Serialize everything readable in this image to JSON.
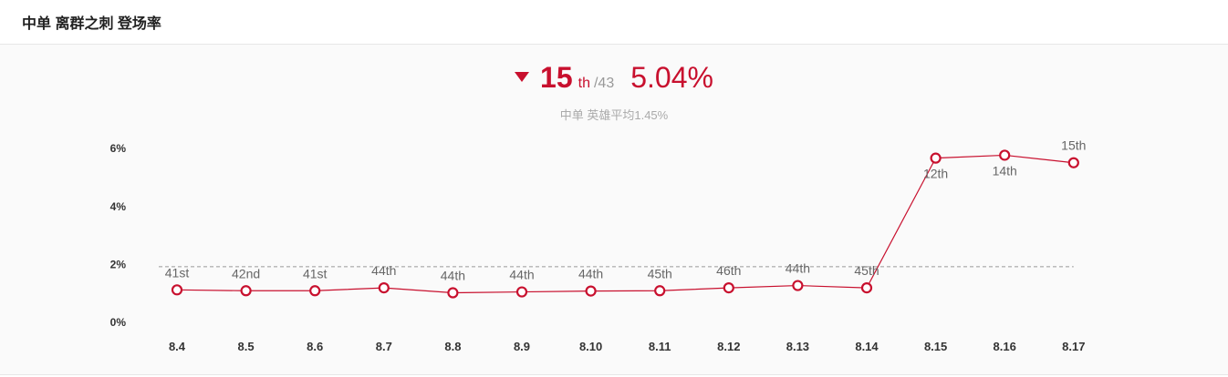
{
  "header": {
    "title": "中单 离群之刺 登场率"
  },
  "summary": {
    "rank": "15",
    "rank_suffix": "th",
    "rank_total": "/43",
    "rate": "5.04%",
    "avg_text": "中单 英雄平均1.45%",
    "trend": "down",
    "trend_icon": "triangle-down-icon"
  },
  "colors": {
    "accent": "#c8102e",
    "avg_line": "#999999",
    "tick_text": "#333333",
    "label_text": "#666666"
  },
  "chart_data": {
    "type": "line",
    "categories": [
      "8.4",
      "8.5",
      "8.6",
      "8.7",
      "8.8",
      "8.9",
      "8.10",
      "8.11",
      "8.12",
      "8.13",
      "8.14",
      "8.15",
      "8.16",
      "8.17"
    ],
    "series": [
      {
        "values": [
          0.65,
          0.62,
          0.62,
          0.72,
          0.55,
          0.58,
          0.61,
          0.62,
          0.72,
          0.8,
          0.72,
          5.2,
          5.3,
          5.04
        ],
        "ranks": [
          "41st",
          "42nd",
          "41st",
          "44th",
          "44th",
          "44th",
          "44th",
          "45th",
          "46th",
          "44th",
          "45th",
          "12th",
          "14th",
          "15th"
        ]
      }
    ],
    "average": 1.45,
    "ylim": [
      0,
      6
    ],
    "yticks": [
      0,
      2,
      4,
      6
    ],
    "ytick_labels": [
      "0%",
      "2%",
      "4%",
      "6%"
    ],
    "grid": false,
    "legend": "none"
  }
}
